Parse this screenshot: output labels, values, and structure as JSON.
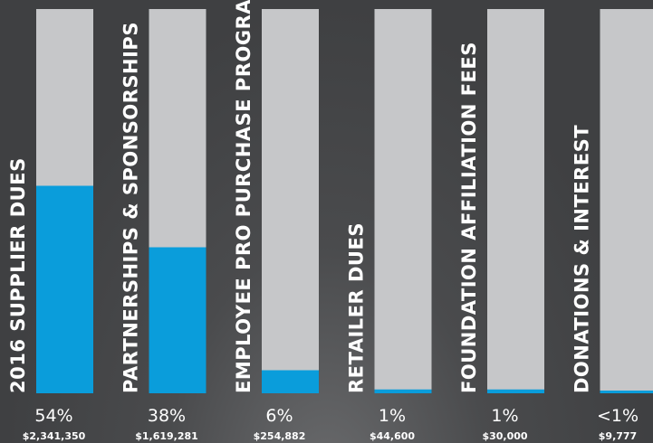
{
  "chart_data": {
    "type": "bar",
    "orientation": "vertical",
    "track_color": "#c6c7c9",
    "fill_color": "#0a9ddb",
    "background_color": "#434446",
    "categories": [
      "2016 SUPPLIER DUES",
      "PARTNERSHIPS & SPONSORSHIPS",
      "EMPLOYEE PRO PURCHASE PROGRAM",
      "RETAILER DUES",
      "FOUNDATION AFFILIATION FEES",
      "DONATIONS & INTEREST"
    ],
    "values": [
      54,
      38,
      6,
      1,
      1,
      0.4
    ],
    "percent_labels": [
      "54%",
      "38%",
      "6%",
      "1%",
      "1%",
      "<1%"
    ],
    "amount_labels": [
      "$2,341,350",
      "$1,619,281",
      "$254,882",
      "$44,600",
      "$30,000",
      "$9,777"
    ],
    "ylim": [
      0,
      100
    ]
  }
}
